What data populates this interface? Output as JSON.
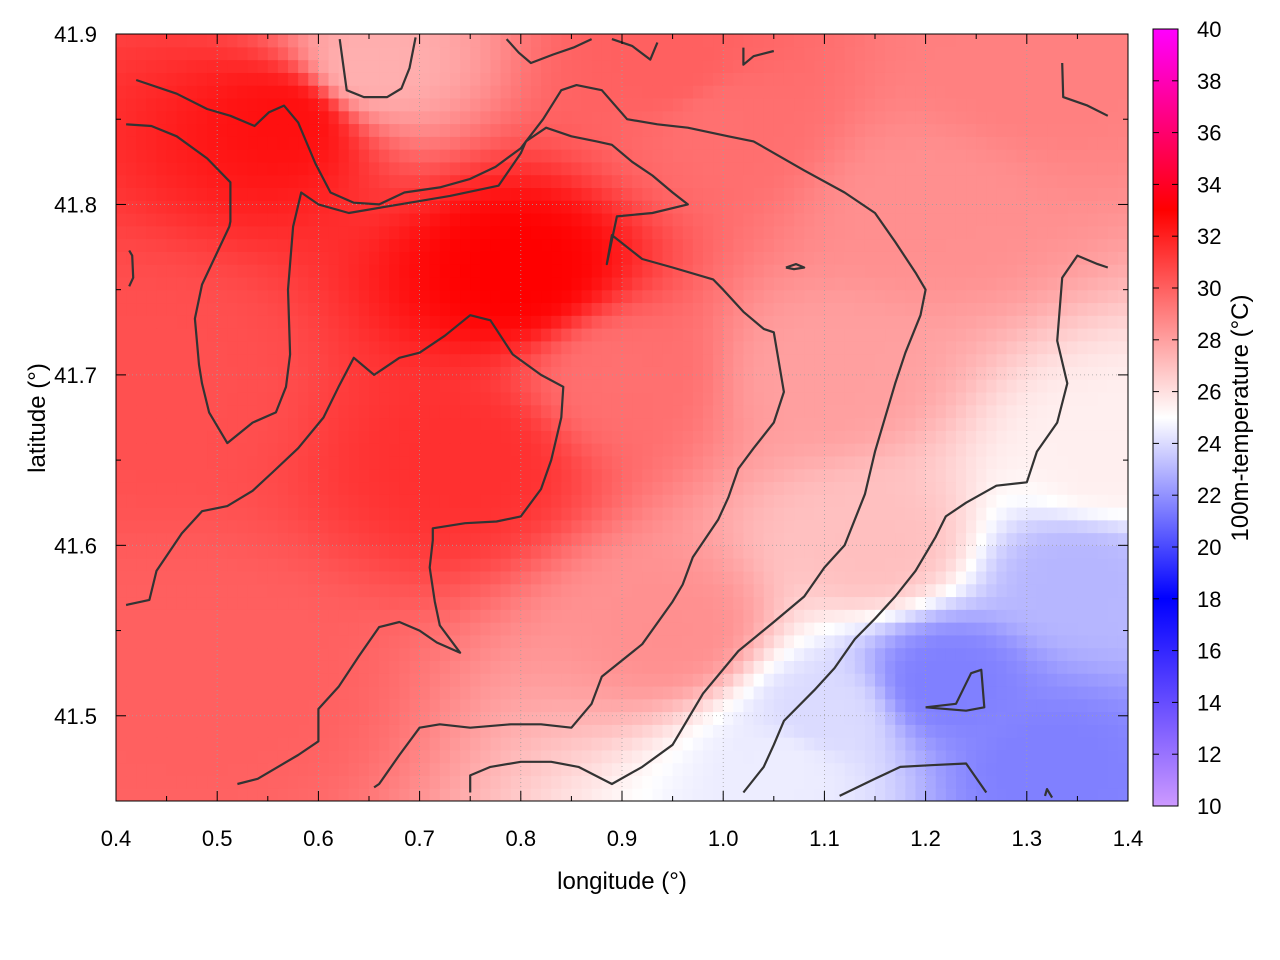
{
  "chart_data": {
    "type": "heatmap",
    "title": "",
    "xlabel": "longitude (°)",
    "ylabel": "latitude (°)",
    "colorbar_label": "100m-temperature (°C)",
    "xlim": [
      0.4,
      1.4
    ],
    "ylim": [
      41.45,
      41.9
    ],
    "x_ticks": [
      "0.4",
      "0.5",
      "0.6",
      "0.7",
      "0.8",
      "0.9",
      "1.0",
      "1.1",
      "1.2",
      "1.3",
      "1.4"
    ],
    "y_ticks": [
      "41.5",
      "41.6",
      "41.7",
      "41.8",
      "41.9"
    ],
    "colorbar_range": [
      10,
      40
    ],
    "colorbar_ticks": [
      "10",
      "12",
      "14",
      "16",
      "18",
      "20",
      "22",
      "24",
      "26",
      "28",
      "30",
      "32",
      "34",
      "36",
      "38",
      "40"
    ],
    "colormap": [
      {
        "value": 10,
        "color": "#cc99ff"
      },
      {
        "value": 18,
        "color": "#0000ff"
      },
      {
        "value": 25,
        "color": "#ffffff"
      },
      {
        "value": 33,
        "color": "#ff0000"
      },
      {
        "value": 40,
        "color": "#ff00ff"
      }
    ],
    "grid": true,
    "contour_color": "#333333",
    "temperature_samples": [
      {
        "lon": 0.8,
        "lat": 41.76,
        "temp": 33
      },
      {
        "lon": 0.57,
        "lat": 41.85,
        "temp": 32.5
      },
      {
        "lon": 0.75,
        "lat": 41.65,
        "temp": 31.5
      },
      {
        "lon": 0.45,
        "lat": 41.7,
        "temp": 30.5
      },
      {
        "lon": 0.5,
        "lat": 41.52,
        "temp": 30
      },
      {
        "lon": 0.9,
        "lat": 41.7,
        "temp": 29.5
      },
      {
        "lon": 0.95,
        "lat": 41.55,
        "temp": 28.5
      },
      {
        "lon": 1.0,
        "lat": 41.85,
        "temp": 29.5
      },
      {
        "lon": 1.1,
        "lat": 41.7,
        "temp": 28
      },
      {
        "lon": 1.3,
        "lat": 41.88,
        "temp": 29
      },
      {
        "lon": 1.15,
        "lat": 41.6,
        "temp": 27
      },
      {
        "lon": 1.38,
        "lat": 41.65,
        "temp": 25.5
      },
      {
        "lon": 1.1,
        "lat": 41.5,
        "temp": 24
      },
      {
        "lon": 1.22,
        "lat": 41.52,
        "temp": 21.5
      },
      {
        "lon": 1.32,
        "lat": 41.47,
        "temp": 21.5
      },
      {
        "lon": 1.35,
        "lat": 41.58,
        "temp": 23
      },
      {
        "lon": 0.65,
        "lat": 41.88,
        "temp": 27.5
      },
      {
        "lon": 0.95,
        "lat": 41.88,
        "temp": 30
      },
      {
        "lon": 1.2,
        "lat": 41.8,
        "temp": 28.5
      },
      {
        "lon": 1.06,
        "lat": 41.47,
        "temp": 24.5
      }
    ],
    "contours": [
      [
        [
          0.42,
          41.873
        ],
        [
          0.46,
          41.865
        ],
        [
          0.49,
          41.856
        ],
        [
          0.513,
          41.852
        ],
        [
          0.537,
          41.846
        ],
        [
          0.551,
          41.854
        ],
        [
          0.566,
          41.858
        ],
        [
          0.58,
          41.848
        ],
        [
          0.597,
          41.824
        ],
        [
          0.612,
          41.807
        ],
        [
          0.635,
          41.801
        ],
        [
          0.66,
          41.8
        ],
        [
          0.685,
          41.807
        ],
        [
          0.72,
          41.81
        ],
        [
          0.75,
          41.815
        ],
        [
          0.775,
          41.822
        ],
        [
          0.8,
          41.833
        ],
        [
          0.822,
          41.85
        ],
        [
          0.84,
          41.867
        ],
        [
          0.855,
          41.87
        ],
        [
          0.88,
          41.867
        ],
        [
          0.905,
          41.85
        ],
        [
          0.935,
          41.847
        ],
        [
          0.965,
          41.845
        ],
        [
          1.005,
          41.84
        ],
        [
          1.03,
          41.837
        ],
        [
          1.08,
          41.82
        ],
        [
          1.12,
          41.807
        ],
        [
          1.15,
          41.795
        ],
        [
          1.17,
          41.778
        ],
        [
          1.19,
          41.76
        ],
        [
          1.2,
          41.75
        ],
        [
          1.195,
          41.735
        ],
        [
          1.18,
          41.713
        ],
        [
          1.17,
          41.695
        ],
        [
          1.16,
          41.675
        ],
        [
          1.15,
          41.655
        ],
        [
          1.14,
          41.63
        ],
        [
          1.12,
          41.6
        ],
        [
          1.1,
          41.587
        ],
        [
          1.08,
          41.57
        ],
        [
          1.05,
          41.555
        ],
        [
          1.015,
          41.538
        ],
        [
          0.98,
          41.513
        ],
        [
          0.95,
          41.483
        ],
        [
          0.92,
          41.47
        ],
        [
          0.89,
          41.46
        ],
        [
          0.857,
          41.47
        ],
        [
          0.83,
          41.473
        ],
        [
          0.8,
          41.473
        ],
        [
          0.77,
          41.47
        ],
        [
          0.75,
          41.465
        ],
        [
          0.75,
          41.455
        ]
      ],
      [
        [
          0.41,
          41.847
        ],
        [
          0.435,
          41.846
        ],
        [
          0.46,
          41.84
        ],
        [
          0.49,
          41.827
        ],
        [
          0.513,
          41.813
        ],
        [
          0.513,
          41.79
        ],
        [
          0.512,
          41.787
        ],
        [
          0.485,
          41.753
        ],
        [
          0.478,
          41.733
        ],
        [
          0.482,
          41.706
        ],
        [
          0.485,
          41.695
        ],
        [
          0.492,
          41.678
        ],
        [
          0.51,
          41.66
        ],
        [
          0.535,
          41.672
        ],
        [
          0.558,
          41.678
        ],
        [
          0.568,
          41.693
        ],
        [
          0.572,
          41.712
        ],
        [
          0.57,
          41.75
        ],
        [
          0.575,
          41.787
        ],
        [
          0.583,
          41.807
        ],
        [
          0.6,
          41.8
        ],
        [
          0.63,
          41.795
        ],
        [
          0.68,
          41.8
        ],
        [
          0.73,
          41.805
        ],
        [
          0.778,
          41.811
        ],
        [
          0.8,
          41.83
        ],
        [
          0.805,
          41.837
        ],
        [
          0.825,
          41.845
        ],
        [
          0.85,
          41.84
        ],
        [
          0.875,
          41.837
        ],
        [
          0.89,
          41.835
        ],
        [
          0.91,
          41.825
        ],
        [
          0.93,
          41.817
        ],
        [
          0.95,
          41.807
        ],
        [
          0.965,
          41.8
        ],
        [
          0.93,
          41.795
        ],
        [
          0.895,
          41.793
        ],
        [
          0.885,
          41.765
        ],
        [
          0.89,
          41.782
        ],
        [
          0.92,
          41.768
        ],
        [
          0.95,
          41.763
        ],
        [
          0.99,
          41.756
        ],
        [
          1.0,
          41.75
        ],
        [
          1.02,
          41.737
        ],
        [
          1.04,
          41.727
        ],
        [
          1.05,
          41.725
        ],
        [
          1.06,
          41.69
        ],
        [
          1.05,
          41.672
        ],
        [
          1.03,
          41.657
        ],
        [
          1.015,
          41.645
        ],
        [
          1.005,
          41.628
        ],
        [
          0.995,
          41.615
        ],
        [
          0.97,
          41.593
        ],
        [
          0.96,
          41.577
        ],
        [
          0.95,
          41.567
        ],
        [
          0.92,
          41.542
        ],
        [
          0.88,
          41.523
        ],
        [
          0.87,
          41.507
        ],
        [
          0.85,
          41.493
        ],
        [
          0.82,
          41.495
        ],
        [
          0.79,
          41.495
        ],
        [
          0.75,
          41.493
        ],
        [
          0.72,
          41.495
        ],
        [
          0.7,
          41.493
        ],
        [
          0.68,
          41.477
        ],
        [
          0.66,
          41.46
        ],
        [
          0.655,
          41.458
        ]
      ],
      [
        [
          0.41,
          41.565
        ],
        [
          0.433,
          41.568
        ],
        [
          0.44,
          41.585
        ],
        [
          0.465,
          41.607
        ],
        [
          0.485,
          41.62
        ],
        [
          0.51,
          41.623
        ],
        [
          0.535,
          41.632
        ],
        [
          0.555,
          41.643
        ],
        [
          0.58,
          41.657
        ],
        [
          0.605,
          41.675
        ],
        [
          0.62,
          41.693
        ],
        [
          0.635,
          41.71
        ],
        [
          0.655,
          41.7
        ],
        [
          0.68,
          41.71
        ],
        [
          0.7,
          41.713
        ],
        [
          0.725,
          41.723
        ],
        [
          0.75,
          41.735
        ],
        [
          0.77,
          41.732
        ],
        [
          0.792,
          41.712
        ],
        [
          0.82,
          41.7
        ],
        [
          0.842,
          41.693
        ],
        [
          0.84,
          41.675
        ],
        [
          0.83,
          41.65
        ],
        [
          0.82,
          41.633
        ],
        [
          0.8,
          41.617
        ],
        [
          0.776,
          41.614
        ],
        [
          0.745,
          41.613
        ],
        [
          0.713,
          41.61
        ],
        [
          0.713,
          41.603
        ],
        [
          0.71,
          41.587
        ],
        [
          0.715,
          41.567
        ],
        [
          0.72,
          41.553
        ],
        [
          0.74,
          41.537
        ],
        [
          0.717,
          41.543
        ],
        [
          0.7,
          41.55
        ],
        [
          0.68,
          41.555
        ],
        [
          0.66,
          41.552
        ],
        [
          0.64,
          41.535
        ],
        [
          0.62,
          41.517
        ],
        [
          0.6,
          41.504
        ],
        [
          0.6,
          41.485
        ],
        [
          0.58,
          41.477
        ],
        [
          0.56,
          41.47
        ],
        [
          0.54,
          41.463
        ],
        [
          0.52,
          41.46
        ]
      ],
      [
        [
          0.621,
          41.897
        ],
        [
          0.628,
          41.867
        ],
        [
          0.645,
          41.863
        ],
        [
          0.668,
          41.863
        ],
        [
          0.682,
          41.868
        ],
        [
          0.69,
          41.88
        ],
        [
          0.696,
          41.898
        ]
      ],
      [
        [
          0.786,
          41.897
        ],
        [
          0.798,
          41.889
        ],
        [
          0.81,
          41.883
        ],
        [
          0.832,
          41.888
        ],
        [
          0.852,
          41.892
        ],
        [
          0.87,
          41.897
        ]
      ],
      [
        [
          0.89,
          41.897
        ],
        [
          0.91,
          41.893
        ],
        [
          0.928,
          41.885
        ],
        [
          0.935,
          41.895
        ]
      ],
      [
        [
          1.02,
          41.892
        ],
        [
          1.02,
          41.882
        ],
        [
          1.03,
          41.887
        ],
        [
          1.05,
          41.89
        ]
      ],
      [
        [
          1.335,
          41.883
        ],
        [
          1.336,
          41.863
        ],
        [
          1.36,
          41.858
        ],
        [
          1.38,
          41.852
        ]
      ],
      [
        [
          0.413,
          41.773
        ],
        [
          0.416,
          41.77
        ],
        [
          0.417,
          41.757
        ],
        [
          0.413,
          41.752
        ]
      ],
      [
        [
          1.062,
          41.763
        ],
        [
          1.072,
          41.765
        ],
        [
          1.08,
          41.763
        ],
        [
          1.07,
          41.762
        ],
        [
          1.062,
          41.763
        ]
      ],
      [
        [
          1.02,
          41.455
        ],
        [
          1.04,
          41.47
        ],
        [
          1.05,
          41.483
        ],
        [
          1.06,
          41.497
        ],
        [
          1.09,
          41.515
        ],
        [
          1.11,
          41.528
        ],
        [
          1.13,
          41.545
        ],
        [
          1.15,
          41.557
        ],
        [
          1.17,
          41.57
        ],
        [
          1.19,
          41.585
        ],
        [
          1.21,
          41.605
        ],
        [
          1.22,
          41.617
        ],
        [
          1.24,
          41.625
        ],
        [
          1.27,
          41.635
        ],
        [
          1.3,
          41.637
        ],
        [
          1.31,
          41.655
        ],
        [
          1.33,
          41.672
        ],
        [
          1.34,
          41.695
        ],
        [
          1.33,
          41.72
        ],
        [
          1.335,
          41.757
        ],
        [
          1.35,
          41.77
        ],
        [
          1.37,
          41.765
        ],
        [
          1.38,
          41.763
        ]
      ],
      [
        [
          1.2,
          41.505
        ],
        [
          1.23,
          41.507
        ],
        [
          1.245,
          41.525
        ],
        [
          1.255,
          41.527
        ],
        [
          1.258,
          41.505
        ],
        [
          1.24,
          41.503
        ],
        [
          1.2,
          41.505
        ]
      ],
      [
        [
          1.115,
          41.453
        ],
        [
          1.15,
          41.463
        ],
        [
          1.175,
          41.47
        ],
        [
          1.205,
          41.471
        ],
        [
          1.24,
          41.472
        ],
        [
          1.26,
          41.455
        ]
      ],
      [
        [
          1.318,
          41.453
        ],
        [
          1.32,
          41.457
        ],
        [
          1.325,
          41.452
        ]
      ]
    ]
  }
}
